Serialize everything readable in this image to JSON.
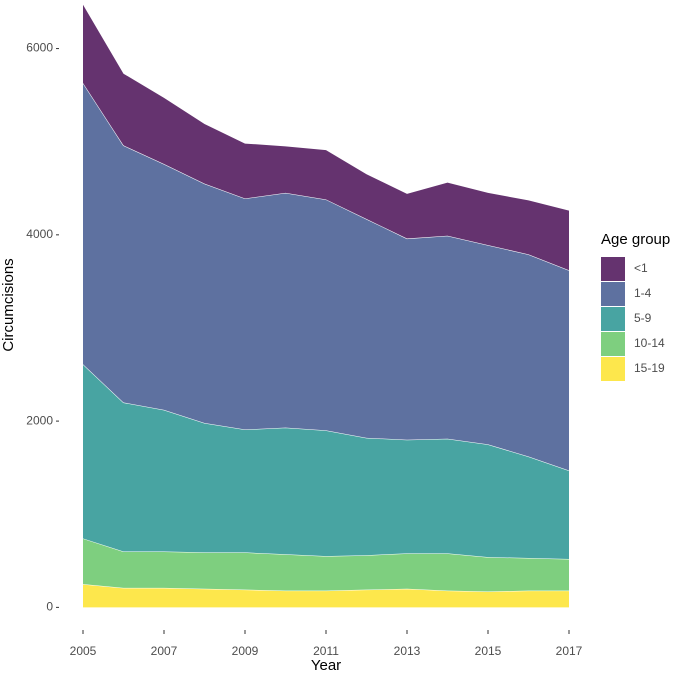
{
  "chart_data": {
    "type": "stacked_area",
    "x_label": "Year",
    "y_label": "Circumcisions",
    "x": [
      2005,
      2006,
      2007,
      2008,
      2009,
      2010,
      2011,
      2012,
      2013,
      2014,
      2015,
      2016,
      2017
    ],
    "xlim": [
      2005,
      2017
    ],
    "xticks": [
      2005,
      2007,
      2009,
      2011,
      2013,
      2015,
      2017
    ],
    "ylim": [
      -200,
      6500
    ],
    "yticks": [
      0,
      2000,
      4000,
      6000
    ],
    "legend_title": "Age group",
    "legend_position": "right",
    "series": [
      {
        "name": "<1",
        "color": "#65336f",
        "values": [
          840,
          770,
          710,
          640,
          590,
          500,
          530,
          480,
          480,
          570,
          560,
          580,
          640
        ]
      },
      {
        "name": "1-4",
        "color": "#5e71a0",
        "values": [
          3020,
          2760,
          2640,
          2570,
          2480,
          2520,
          2480,
          2350,
          2160,
          2180,
          2140,
          2170,
          2150
        ]
      },
      {
        "name": "5-9",
        "color": "#48a4a2",
        "values": [
          1870,
          1600,
          1520,
          1390,
          1320,
          1360,
          1350,
          1260,
          1220,
          1230,
          1210,
          1090,
          950
        ]
      },
      {
        "name": "10-14",
        "color": "#7ecf7f",
        "values": [
          490,
          390,
          390,
          390,
          400,
          390,
          370,
          370,
          380,
          400,
          370,
          350,
          340
        ]
      },
      {
        "name": "15-19",
        "color": "#fde74c",
        "values": [
          250,
          210,
          210,
          200,
          190,
          180,
          180,
          190,
          200,
          180,
          170,
          180,
          180
        ]
      }
    ]
  }
}
